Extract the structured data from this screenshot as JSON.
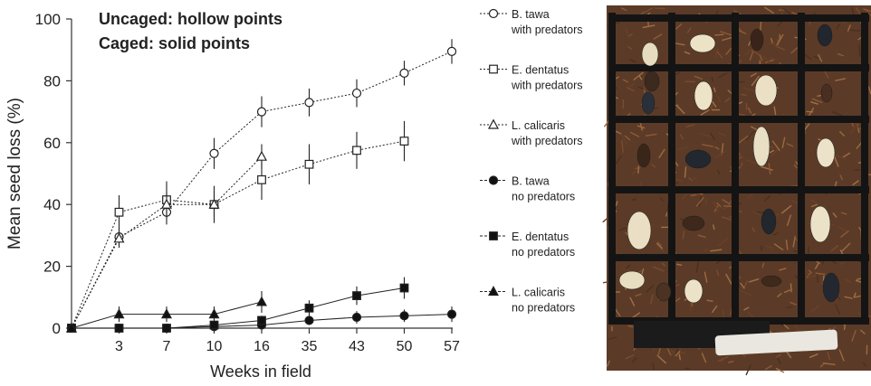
{
  "chart_data": {
    "type": "line",
    "title": "",
    "annotation": [
      "Uncaged: hollow points",
      "Caged: solid points"
    ],
    "xlabel": "Weeks in field",
    "ylabel": "Mean seed loss (%)",
    "ylim": [
      0,
      100
    ],
    "yticks": [
      0,
      20,
      40,
      60,
      80,
      100
    ],
    "xticks": [
      "3",
      "7",
      "10",
      "16",
      "35",
      "43",
      "50",
      "57"
    ],
    "x_axis_note": "categorical (equally spaced) positions, origin at 0",
    "grid": false,
    "legend_position": "right",
    "series": [
      {
        "name": "B. tawa with predators",
        "marker": "circle",
        "filled": false,
        "x": [
          "0",
          "3",
          "7",
          "10",
          "16",
          "35",
          "43",
          "50",
          "57"
        ],
        "values": [
          0,
          29.5,
          37.5,
          56.5,
          70,
          73,
          76,
          82.5,
          89.5
        ],
        "errors": [
          0,
          3,
          4,
          5,
          5,
          4.5,
          4.5,
          4,
          4
        ]
      },
      {
        "name": "E. dentatus with predators",
        "marker": "square",
        "filled": false,
        "x": [
          "0",
          "3",
          "7",
          "10",
          "16",
          "35",
          "43",
          "50"
        ],
        "values": [
          0,
          37.5,
          41.5,
          40,
          48,
          53,
          57.5,
          60.5
        ],
        "errors": [
          0,
          5.5,
          6,
          6,
          6.5,
          6.5,
          6,
          6.5
        ]
      },
      {
        "name": "L. calicaris with predators",
        "marker": "triangle",
        "filled": false,
        "x": [
          "0",
          "3",
          "7",
          "10",
          "16"
        ],
        "values": [
          0,
          29,
          40,
          40,
          55.5
        ],
        "errors": [
          0,
          3,
          4,
          4,
          4
        ]
      },
      {
        "name": "B. tawa no predators",
        "marker": "circle",
        "filled": true,
        "x": [
          "0",
          "3",
          "7",
          "10",
          "16",
          "35",
          "43",
          "50",
          "57"
        ],
        "values": [
          0,
          0,
          0,
          0.5,
          1,
          2.5,
          3.5,
          4,
          4.5
        ],
        "errors": [
          0,
          0.3,
          0.3,
          0.5,
          0.8,
          1.5,
          2,
          2,
          2.5
        ]
      },
      {
        "name": "E. dentatus no predators",
        "marker": "square",
        "filled": true,
        "x": [
          "0",
          "3",
          "7",
          "10",
          "16",
          "35",
          "43",
          "50"
        ],
        "values": [
          0,
          0,
          0,
          1,
          2.5,
          6.5,
          10.5,
          13
        ],
        "errors": [
          0,
          0.3,
          0.3,
          0.8,
          1.5,
          2.5,
          3,
          3.5
        ]
      },
      {
        "name": "L. calicaris no predators",
        "marker": "triangle",
        "filled": true,
        "x": [
          "0",
          "3",
          "7",
          "10",
          "16"
        ],
        "values": [
          0,
          4.5,
          4.5,
          4.5,
          8.5
        ],
        "errors": [
          0,
          2.5,
          2.5,
          2.5,
          3.5
        ]
      }
    ]
  },
  "legend": [
    {
      "line1": "B. tawa",
      "line2": "with predators"
    },
    {
      "line1": "E. dentatus",
      "line2": "with predators"
    },
    {
      "line1": "L. calicaris",
      "line2": "with predators"
    },
    {
      "line1": "B. tawa",
      "line2": "no predators"
    },
    {
      "line1": "E. dentatus",
      "line2": "no predators"
    },
    {
      "line1": "L. calicaris",
      "line2": "no predators"
    }
  ],
  "photo": {
    "description_name": "seed-tray-photo",
    "background_color": "#5a3a26",
    "grid_color": "#121212"
  }
}
